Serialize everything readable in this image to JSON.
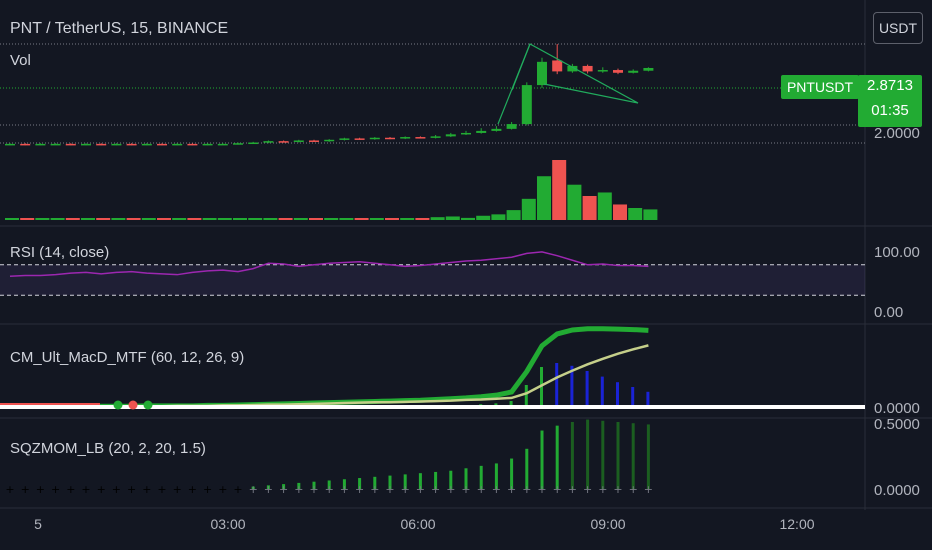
{
  "header": {
    "symbol_title": "PNT / TetherUS, 15, BINANCE",
    "vol_label": "Vol"
  },
  "quote_button": "USDT",
  "last_price": {
    "symbol": "PNTUSDT",
    "price": "2.8713",
    "countdown": "01:35"
  },
  "price_axis": {
    "tick": "2.0000"
  },
  "rsi": {
    "label": "RSI (14, close)",
    "ticks": [
      "100.00",
      "0.00"
    ]
  },
  "macd": {
    "label": "CM_Ult_MacD_MTF (60, 12, 26, 9)",
    "ticks": [
      "0.0000"
    ]
  },
  "sqz": {
    "label": "SQZMOM_LB (20, 2, 20, 1.5)",
    "ticks": [
      "0.5000",
      "0.0000"
    ]
  },
  "x_axis": {
    "ticks": [
      "5",
      "03:00",
      "06:00",
      "09:00",
      "12:00"
    ]
  },
  "colors": {
    "background": "#131722",
    "up": "#26a69a",
    "up_bright": "#22ab33",
    "down": "#ef5350",
    "rsi_line": "#9c27b0",
    "pattern_line": "#21ab5d"
  },
  "chart_data": {
    "type": "candlestick",
    "interval": "15",
    "symbol": "PNT / TetherUS",
    "exchange": "BINANCE",
    "last_price": 2.8713,
    "candles": [
      {
        "o": 1.75,
        "c": 1.76,
        "h": 1.77,
        "l": 1.74
      },
      {
        "o": 1.76,
        "c": 1.75,
        "h": 1.77,
        "l": 1.74
      },
      {
        "o": 1.75,
        "c": 1.76,
        "h": 1.77,
        "l": 1.74
      },
      {
        "o": 1.76,
        "c": 1.76,
        "h": 1.77,
        "l": 1.75
      },
      {
        "o": 1.76,
        "c": 1.75,
        "h": 1.77,
        "l": 1.74
      },
      {
        "o": 1.75,
        "c": 1.76,
        "h": 1.77,
        "l": 1.74
      },
      {
        "o": 1.76,
        "c": 1.75,
        "h": 1.77,
        "l": 1.74
      },
      {
        "o": 1.75,
        "c": 1.76,
        "h": 1.77,
        "l": 1.74
      },
      {
        "o": 1.76,
        "c": 1.75,
        "h": 1.77,
        "l": 1.74
      },
      {
        "o": 1.75,
        "c": 1.76,
        "h": 1.77,
        "l": 1.74
      },
      {
        "o": 1.76,
        "c": 1.75,
        "h": 1.77,
        "l": 1.74
      },
      {
        "o": 1.75,
        "c": 1.76,
        "h": 1.77,
        "l": 1.74
      },
      {
        "o": 1.76,
        "c": 1.75,
        "h": 1.77,
        "l": 1.74
      },
      {
        "o": 1.75,
        "c": 1.76,
        "h": 1.77,
        "l": 1.74
      },
      {
        "o": 1.76,
        "c": 1.76,
        "h": 1.77,
        "l": 1.75
      },
      {
        "o": 1.76,
        "c": 1.77,
        "h": 1.78,
        "l": 1.75
      },
      {
        "o": 1.77,
        "c": 1.78,
        "h": 1.79,
        "l": 1.76
      },
      {
        "o": 1.78,
        "c": 1.8,
        "h": 1.81,
        "l": 1.77
      },
      {
        "o": 1.8,
        "c": 1.79,
        "h": 1.81,
        "l": 1.78
      },
      {
        "o": 1.79,
        "c": 1.81,
        "h": 1.82,
        "l": 1.78
      },
      {
        "o": 1.81,
        "c": 1.8,
        "h": 1.82,
        "l": 1.79
      },
      {
        "o": 1.8,
        "c": 1.82,
        "h": 1.83,
        "l": 1.79
      },
      {
        "o": 1.82,
        "c": 1.84,
        "h": 1.85,
        "l": 1.81
      },
      {
        "o": 1.84,
        "c": 1.83,
        "h": 1.85,
        "l": 1.82
      },
      {
        "o": 1.83,
        "c": 1.85,
        "h": 1.86,
        "l": 1.82
      },
      {
        "o": 1.85,
        "c": 1.84,
        "h": 1.86,
        "l": 1.83
      },
      {
        "o": 1.84,
        "c": 1.86,
        "h": 1.87,
        "l": 1.83
      },
      {
        "o": 1.86,
        "c": 1.85,
        "h": 1.87,
        "l": 1.84
      },
      {
        "o": 1.85,
        "c": 1.87,
        "h": 1.89,
        "l": 1.84
      },
      {
        "o": 1.87,
        "c": 1.9,
        "h": 1.92,
        "l": 1.86
      },
      {
        "o": 1.9,
        "c": 1.92,
        "h": 1.95,
        "l": 1.89
      },
      {
        "o": 1.92,
        "c": 1.95,
        "h": 1.99,
        "l": 1.91
      },
      {
        "o": 1.95,
        "c": 1.98,
        "h": 2.02,
        "l": 1.94
      },
      {
        "o": 1.98,
        "c": 2.05,
        "h": 2.08,
        "l": 1.97
      },
      {
        "o": 2.05,
        "c": 2.62,
        "h": 2.66,
        "l": 2.03
      },
      {
        "o": 2.62,
        "c": 2.96,
        "h": 3.02,
        "l": 2.58
      },
      {
        "o": 2.98,
        "c": 2.82,
        "h": 3.22,
        "l": 2.78
      },
      {
        "o": 2.82,
        "c": 2.9,
        "h": 2.93,
        "l": 2.8
      },
      {
        "o": 2.9,
        "c": 2.82,
        "h": 2.92,
        "l": 2.79
      },
      {
        "o": 2.82,
        "c": 2.84,
        "h": 2.88,
        "l": 2.8
      },
      {
        "o": 2.84,
        "c": 2.8,
        "h": 2.86,
        "l": 2.78
      },
      {
        "o": 2.8,
        "c": 2.83,
        "h": 2.85,
        "l": 2.79
      },
      {
        "o": 2.83,
        "c": 2.87,
        "h": 2.88,
        "l": 2.82
      }
    ],
    "volume": [
      1,
      1,
      1,
      1,
      1,
      1,
      1,
      1,
      1,
      1,
      1,
      1,
      1,
      1,
      1,
      1,
      1,
      1,
      1,
      1,
      1,
      1,
      1,
      1,
      1,
      1,
      1,
      2,
      4,
      5,
      3,
      6,
      8,
      14,
      30,
      62,
      85,
      50,
      34,
      39,
      22,
      17,
      15
    ],
    "rsi": {
      "series_name": "RSI",
      "values": [
        55,
        56,
        56,
        57,
        59,
        60,
        58,
        60,
        61,
        59,
        58,
        57,
        60,
        62,
        63,
        61,
        65,
        72,
        71,
        68,
        70,
        72,
        73,
        74,
        72,
        70,
        68,
        69,
        71,
        73,
        75,
        76,
        78,
        80,
        85,
        87,
        82,
        76,
        70,
        71,
        69,
        69,
        68
      ],
      "upper_band": 70,
      "lower_band": 30,
      "ylim": [
        0,
        100
      ]
    },
    "macd": {
      "values": [
        0.02,
        0.02,
        0.02,
        0.02,
        0.02,
        0.02,
        0.02,
        0.02,
        0.02,
        0.03,
        0.03,
        0.03,
        0.03,
        0.04,
        0.04,
        0.05,
        0.06,
        0.07,
        0.08,
        0.09,
        0.1,
        0.11,
        0.12,
        0.13,
        0.14,
        0.15,
        0.16,
        0.17,
        0.19,
        0.21,
        0.23,
        0.26,
        0.3,
        0.38,
        0.9,
        1.55,
        1.85,
        1.95,
        1.98,
        1.98,
        1.97,
        1.96,
        1.94
      ],
      "signal": [
        0.01,
        0.01,
        0.01,
        0.01,
        0.02,
        0.02,
        0.02,
        0.02,
        0.02,
        0.02,
        0.02,
        0.03,
        0.03,
        0.03,
        0.04,
        0.04,
        0.05,
        0.06,
        0.06,
        0.07,
        0.08,
        0.09,
        0.1,
        0.11,
        0.12,
        0.12,
        0.13,
        0.14,
        0.15,
        0.16,
        0.18,
        0.19,
        0.21,
        0.23,
        0.35,
        0.55,
        0.75,
        0.92,
        1.08,
        1.22,
        1.35,
        1.46,
        1.56
      ]
    },
    "sqzmom": {
      "values": [
        0,
        0,
        0,
        0,
        0,
        0,
        0,
        0,
        0,
        0,
        0,
        0,
        0,
        0,
        0,
        0,
        0.02,
        0.03,
        0.04,
        0.05,
        0.06,
        0.07,
        0.08,
        0.09,
        0.1,
        0.11,
        0.12,
        0.13,
        0.14,
        0.15,
        0.17,
        0.19,
        0.21,
        0.25,
        0.33,
        0.48,
        0.52,
        0.55,
        0.57,
        0.56,
        0.55,
        0.54,
        0.53
      ],
      "ylim": [
        0,
        0.55
      ]
    },
    "x_ticks": [
      "5",
      "03:00",
      "06:00",
      "09:00",
      "12:00"
    ]
  }
}
